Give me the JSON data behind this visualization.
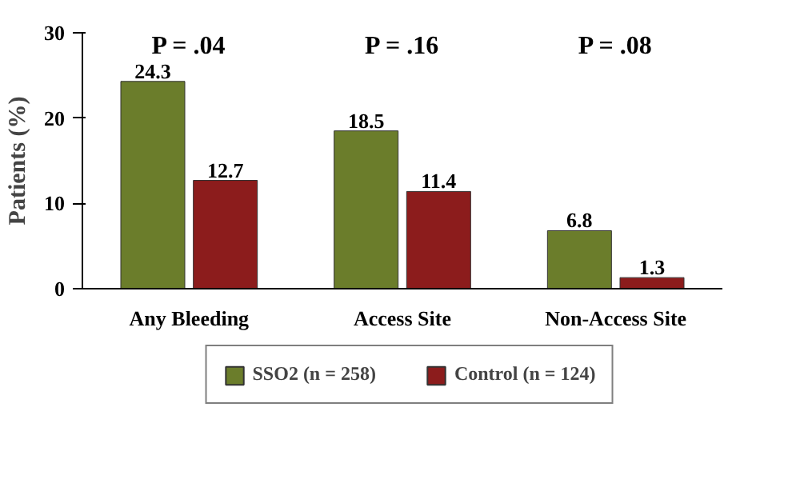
{
  "chart_data": {
    "type": "bar",
    "ylabel": "Patients (%)",
    "categories": [
      "Any Bleeding",
      "Access Site",
      "Non-Access Site"
    ],
    "series": [
      {
        "name": "SSO2 (n = 258)",
        "color": "#6b7d2b",
        "values": [
          24.3,
          18.5,
          6.8
        ]
      },
      {
        "name": "Control (n = 124)",
        "color": "#8c1c1c",
        "values": [
          12.7,
          11.4,
          1.3
        ]
      }
    ],
    "ylim": [
      0,
      30
    ],
    "yticks": [
      0,
      10,
      20,
      30
    ],
    "grid": false,
    "legend": "bottom",
    "data_labels": true,
    "annotations": [
      "P = .04",
      "P = .16",
      "P = .08"
    ]
  }
}
